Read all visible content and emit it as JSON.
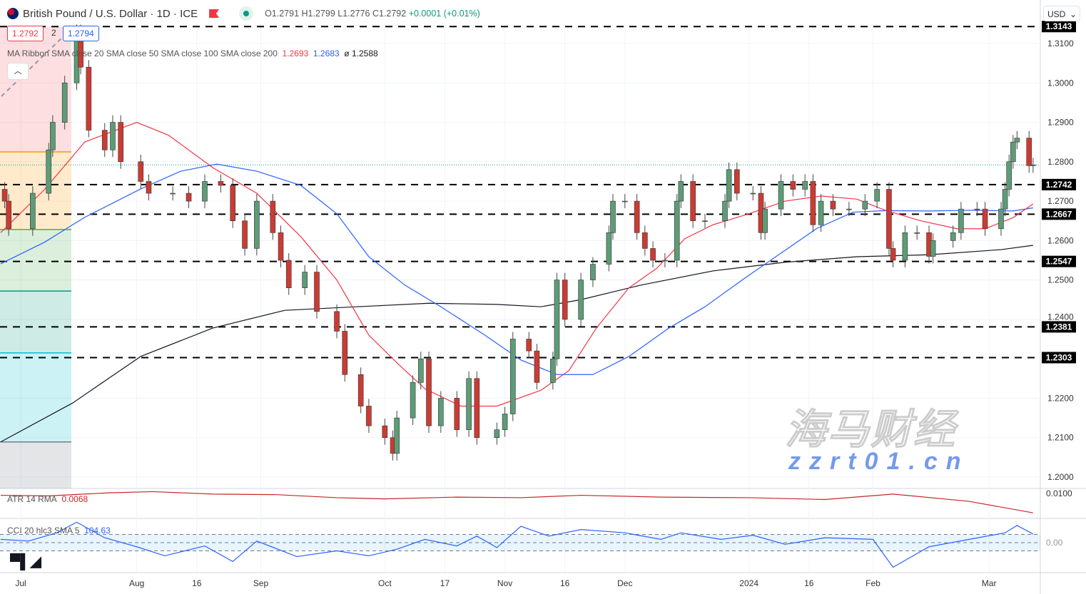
{
  "header": {
    "symbol_title": "British Pound / U.S. Dollar · 1D · ICE",
    "open": "O1.2791",
    "high": "H1.2799",
    "low": "L1.2776",
    "close": "C1.2792",
    "change": "+0.0001 (+0.01%)"
  },
  "price_boxes": {
    "bid": "1.2792",
    "spread": "2",
    "ask": "1.2794"
  },
  "ma_legend": {
    "label": "MA Ribbon SMA close 20 SMA close 50 SMA close 100 SMA close 200",
    "v1": "1.2693",
    "v2": "1.2683",
    "v3_symbol": "ø",
    "v3": "1.2588"
  },
  "atr_legend": {
    "label": "ATR 14 RMA",
    "value": "0.0068"
  },
  "cci_legend": {
    "label": "CCI 20 hlc3 SMA 5",
    "value": "104.63"
  },
  "currency_select": "USD",
  "collapse_icon": "chevron-up-icon",
  "watermark": {
    "cn": "海马财经",
    "url": "zzrt01.cn"
  },
  "logo": "TV",
  "colors": {
    "up": "#5d9c76",
    "down": "#cc3b33",
    "sma20": "#f23645",
    "sma50": "#2962ff",
    "sma200": "#131722",
    "atr": "#c62828",
    "cci": "#2962ff"
  },
  "chart_data": {
    "type": "candlestick",
    "ylim": [
      1.195,
      1.3165
    ],
    "y_ticks": [
      "1.3100",
      "1.3000",
      "1.2900",
      "1.2800",
      "1.2700",
      "1.2600",
      "1.2500",
      "1.2400",
      "1.2200",
      "1.2100",
      "1.2000"
    ],
    "x_ticks": [
      [
        "2023-07-03",
        "Jul"
      ],
      [
        "2023-08-01",
        "Aug"
      ],
      [
        "2023-08-16",
        "16"
      ],
      [
        "2023-09-01",
        "Sep"
      ],
      [
        "2023-10-02",
        "Oct"
      ],
      [
        "2023-10-17",
        "17"
      ],
      [
        "2023-11-01",
        "Nov"
      ],
      [
        "2023-11-16",
        "16"
      ],
      [
        "2023-12-01",
        "Dec"
      ],
      [
        "2024-01-01",
        "2024"
      ],
      [
        "2024-01-16",
        "16"
      ],
      [
        "2024-02-01",
        "Feb"
      ],
      [
        "2024-03-01",
        "Mar"
      ]
    ],
    "last_price": 1.2792,
    "levels": [
      "1.3143",
      "1.2742",
      "1.2667",
      "1.2547",
      "1.2381",
      "1.2303"
    ],
    "fib_levels": [
      1.3143,
      1.2825,
      1.2628,
      1.2472,
      1.2315,
      1.2089,
      1.197
    ],
    "closes": [
      [
        "2023-06-29",
        1.27
      ],
      [
        "2023-06-30",
        1.263
      ],
      [
        "2023-07-06",
        1.272
      ],
      [
        "2023-07-10",
        1.283
      ],
      [
        "2023-07-11",
        1.29
      ],
      [
        "2023-07-14",
        1.3
      ],
      [
        "2023-07-17",
        1.313
      ],
      [
        "2023-07-18",
        1.304
      ],
      [
        "2023-07-20",
        1.288
      ],
      [
        "2023-07-24",
        1.283
      ],
      [
        "2023-07-26",
        1.29
      ],
      [
        "2023-07-28",
        1.28
      ],
      [
        "2023-08-02",
        1.275
      ],
      [
        "2023-08-04",
        1.272
      ],
      [
        "2023-08-10",
        1.272
      ],
      [
        "2023-08-14",
        1.27
      ],
      [
        "2023-08-18",
        1.275
      ],
      [
        "2023-08-22",
        1.274
      ],
      [
        "2023-08-25",
        1.265
      ],
      [
        "2023-08-28",
        1.258
      ],
      [
        "2023-08-31",
        1.27
      ],
      [
        "2023-09-04",
        1.262
      ],
      [
        "2023-09-06",
        1.255
      ],
      [
        "2023-09-08",
        1.248
      ],
      [
        "2023-09-12",
        1.252
      ],
      [
        "2023-09-15",
        1.242
      ],
      [
        "2023-09-20",
        1.237
      ],
      [
        "2023-09-22",
        1.226
      ],
      [
        "2023-09-26",
        1.218
      ],
      [
        "2023-09-28",
        1.213
      ],
      [
        "2023-10-02",
        1.21
      ],
      [
        "2023-10-04",
        1.206
      ],
      [
        "2023-10-05",
        1.215
      ],
      [
        "2023-10-09",
        1.224
      ],
      [
        "2023-10-11",
        1.23
      ],
      [
        "2023-10-13",
        1.213
      ],
      [
        "2023-10-16",
        1.22
      ],
      [
        "2023-10-20",
        1.212
      ],
      [
        "2023-10-23",
        1.225
      ],
      [
        "2023-10-25",
        1.21
      ],
      [
        "2023-10-30",
        1.212
      ],
      [
        "2023-11-01",
        1.216
      ],
      [
        "2023-11-03",
        1.235
      ],
      [
        "2023-11-07",
        1.232
      ],
      [
        "2023-11-09",
        1.224
      ],
      [
        "2023-11-13",
        1.23
      ],
      [
        "2023-11-14",
        1.25
      ],
      [
        "2023-11-16",
        1.24
      ],
      [
        "2023-11-20",
        1.25
      ],
      [
        "2023-11-23",
        1.254
      ],
      [
        "2023-11-27",
        1.262
      ],
      [
        "2023-11-28",
        1.27
      ],
      [
        "2023-12-01",
        1.27
      ],
      [
        "2023-12-04",
        1.262
      ],
      [
        "2023-12-06",
        1.258
      ],
      [
        "2023-12-08",
        1.255
      ],
      [
        "2023-12-11",
        1.255
      ],
      [
        "2023-12-14",
        1.27
      ],
      [
        "2023-12-15",
        1.275
      ],
      [
        "2023-12-18",
        1.265
      ],
      [
        "2023-12-21",
        1.265
      ],
      [
        "2023-12-26",
        1.27
      ],
      [
        "2023-12-27",
        1.278
      ],
      [
        "2023-12-29",
        1.272
      ],
      [
        "2024-01-02",
        1.272
      ],
      [
        "2024-01-04",
        1.262
      ],
      [
        "2024-01-05",
        1.268
      ],
      [
        "2024-01-09",
        1.275
      ],
      [
        "2024-01-12",
        1.273
      ],
      [
        "2024-01-15",
        1.275
      ],
      [
        "2024-01-17",
        1.264
      ],
      [
        "2024-01-19",
        1.27
      ],
      [
        "2024-01-22",
        1.268
      ],
      [
        "2024-01-26",
        1.268
      ],
      [
        "2024-01-30",
        1.27
      ],
      [
        "2024-02-02",
        1.273
      ],
      [
        "2024-02-05",
        1.258
      ],
      [
        "2024-02-06",
        1.255
      ],
      [
        "2024-02-09",
        1.262
      ],
      [
        "2024-02-12",
        1.262
      ],
      [
        "2024-02-15",
        1.256
      ],
      [
        "2024-02-16",
        1.26
      ],
      [
        "2024-02-21",
        1.262
      ],
      [
        "2024-02-23",
        1.268
      ],
      [
        "2024-02-27",
        1.268
      ],
      [
        "2024-02-29",
        1.263
      ],
      [
        "2024-03-04",
        1.268
      ],
      [
        "2024-03-05",
        1.273
      ],
      [
        "2024-03-06",
        1.28
      ],
      [
        "2024-03-07",
        1.285
      ],
      [
        "2024-03-08",
        1.286
      ],
      [
        "2024-03-11",
        1.279
      ],
      [
        "2024-03-12",
        1.2792
      ]
    ],
    "sma20": [
      [
        "2023-06-28",
        1.262
      ],
      [
        "2023-07-09",
        1.273
      ],
      [
        "2023-07-19",
        1.285
      ],
      [
        "2023-08-01",
        1.29
      ],
      [
        "2023-08-09",
        1.2867
      ],
      [
        "2023-08-20",
        1.2785
      ],
      [
        "2023-08-31",
        1.272
      ],
      [
        "2023-09-11",
        1.261
      ],
      [
        "2023-09-20",
        1.25
      ],
      [
        "2023-09-28",
        1.236
      ],
      [
        "2023-10-05",
        1.229
      ],
      [
        "2023-10-12",
        1.2224
      ],
      [
        "2023-10-21",
        1.218
      ],
      [
        "2023-10-30",
        1.218
      ],
      [
        "2023-11-10",
        1.222
      ],
      [
        "2023-11-17",
        1.227
      ],
      [
        "2023-11-24",
        1.238
      ],
      [
        "2023-12-02",
        1.248
      ],
      [
        "2023-12-09",
        1.253
      ],
      [
        "2023-12-16",
        1.2605
      ],
      [
        "2023-12-23",
        1.264
      ],
      [
        "2024-01-01",
        1.2668
      ],
      [
        "2024-01-10",
        1.27
      ],
      [
        "2024-01-19",
        1.2713
      ],
      [
        "2024-01-28",
        1.2705
      ],
      [
        "2024-02-04",
        1.2677
      ],
      [
        "2024-02-13",
        1.265
      ],
      [
        "2024-02-22",
        1.263
      ],
      [
        "2024-02-29",
        1.263
      ],
      [
        "2024-03-07",
        1.2658
      ],
      [
        "2024-03-12",
        1.2693
      ]
    ],
    "sma50": [
      [
        "2023-06-28",
        1.2541
      ],
      [
        "2023-07-09",
        1.2596
      ],
      [
        "2023-07-19",
        1.2659
      ],
      [
        "2023-08-02",
        1.2731
      ],
      [
        "2023-08-12",
        1.2776
      ],
      [
        "2023-08-21",
        1.2794
      ],
      [
        "2023-08-31",
        1.2776
      ],
      [
        "2023-09-11",
        1.274
      ],
      [
        "2023-09-20",
        1.2668
      ],
      [
        "2023-09-28",
        1.2559
      ],
      [
        "2023-10-07",
        1.2487
      ],
      [
        "2023-10-16",
        1.2432
      ],
      [
        "2023-10-27",
        1.236
      ],
      [
        "2023-11-05",
        1.2297
      ],
      [
        "2023-11-14",
        1.226
      ],
      [
        "2023-11-23",
        1.226
      ],
      [
        "2023-12-02",
        1.2306
      ],
      [
        "2023-12-12",
        1.2378
      ],
      [
        "2023-12-21",
        1.2432
      ],
      [
        "2023-12-31",
        1.2505
      ],
      [
        "2024-01-09",
        1.2568
      ],
      [
        "2024-01-18",
        1.2631
      ],
      [
        "2024-01-27",
        1.2672
      ],
      [
        "2024-02-04",
        1.2676
      ],
      [
        "2024-02-15",
        1.2675
      ],
      [
        "2024-02-26",
        1.2677
      ],
      [
        "2024-03-07",
        1.2675
      ],
      [
        "2024-03-12",
        1.2683
      ]
    ],
    "sma200": [
      [
        "2023-06-28",
        1.2089
      ],
      [
        "2023-07-16",
        1.2188
      ],
      [
        "2023-08-02",
        1.2306
      ],
      [
        "2023-08-20",
        1.2378
      ],
      [
        "2023-09-07",
        1.2423
      ],
      [
        "2023-09-25",
        1.2432
      ],
      [
        "2023-10-13",
        1.2441
      ],
      [
        "2023-10-30",
        1.2438
      ],
      [
        "2023-11-10",
        1.2432
      ],
      [
        "2023-11-20",
        1.245
      ],
      [
        "2023-12-05",
        1.2487
      ],
      [
        "2023-12-23",
        1.2523
      ],
      [
        "2024-01-10",
        1.2545
      ],
      [
        "2024-01-28",
        1.2559
      ],
      [
        "2024-02-15",
        1.2564
      ],
      [
        "2024-03-04",
        1.2577
      ],
      [
        "2024-03-12",
        1.2588
      ]
    ],
    "atr": {
      "tick": "0.0100",
      "points": [
        [
          "2023-06-28",
          0.0097
        ],
        [
          "2023-07-10",
          0.0096
        ],
        [
          "2023-07-25",
          0.0101
        ],
        [
          "2023-08-05",
          0.0103
        ],
        [
          "2023-08-20",
          0.0099
        ],
        [
          "2023-09-05",
          0.0098
        ],
        [
          "2023-09-20",
          0.0093
        ],
        [
          "2023-10-02",
          0.0091
        ],
        [
          "2023-10-20",
          0.0094
        ],
        [
          "2023-11-05",
          0.0093
        ],
        [
          "2023-11-20",
          0.0097
        ],
        [
          "2023-12-10",
          0.0094
        ],
        [
          "2024-01-01",
          0.0093
        ],
        [
          "2024-01-20",
          0.009
        ],
        [
          "2024-02-06",
          0.0099
        ],
        [
          "2024-02-25",
          0.0087
        ],
        [
          "2024-03-12",
          0.0068
        ]
      ]
    },
    "cci": {
      "tick": "0.00",
      "bands": [
        100,
        0,
        -100
      ],
      "points": [
        [
          "2023-06-28",
          40
        ],
        [
          "2023-07-05",
          20
        ],
        [
          "2023-07-12",
          120
        ],
        [
          "2023-07-17",
          250
        ],
        [
          "2023-07-24",
          60
        ],
        [
          "2023-08-01",
          -50
        ],
        [
          "2023-08-08",
          -160
        ],
        [
          "2023-08-18",
          -40
        ],
        [
          "2023-08-25",
          -230
        ],
        [
          "2023-08-31",
          20
        ],
        [
          "2023-09-10",
          -170
        ],
        [
          "2023-09-20",
          -100
        ],
        [
          "2023-09-28",
          -160
        ],
        [
          "2023-10-05",
          -80
        ],
        [
          "2023-10-12",
          40
        ],
        [
          "2023-10-20",
          -40
        ],
        [
          "2023-10-25",
          80
        ],
        [
          "2023-10-30",
          -60
        ],
        [
          "2023-11-05",
          200
        ],
        [
          "2023-11-12",
          80
        ],
        [
          "2023-11-20",
          160
        ],
        [
          "2023-12-01",
          120
        ],
        [
          "2023-12-10",
          40
        ],
        [
          "2023-12-15",
          120
        ],
        [
          "2023-12-25",
          40
        ],
        [
          "2024-01-02",
          90
        ],
        [
          "2024-01-10",
          -20
        ],
        [
          "2024-01-20",
          60
        ],
        [
          "2024-02-01",
          40
        ],
        [
          "2024-02-06",
          -300
        ],
        [
          "2024-02-15",
          -50
        ],
        [
          "2024-02-25",
          40
        ],
        [
          "2024-03-05",
          120
        ],
        [
          "2024-03-08",
          210
        ],
        [
          "2024-03-12",
          105
        ]
      ]
    }
  }
}
